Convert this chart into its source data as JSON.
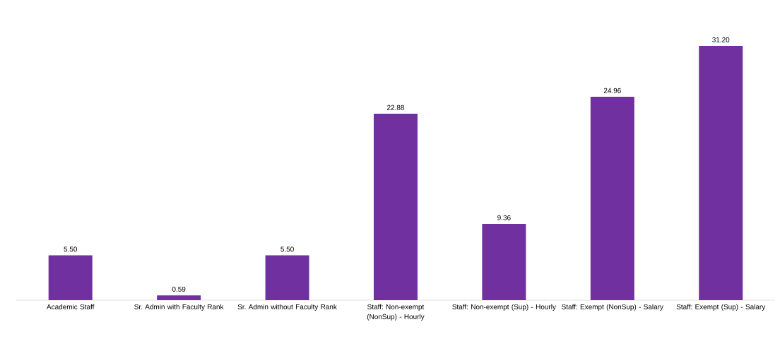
{
  "chart_data": {
    "type": "bar",
    "categories": [
      "Academic Staff",
      "Sr. Admin with Faculty Rank",
      "Sr. Admin without Faculty Rank",
      "Staff: Non-exempt (NonSup) - Hourly",
      "Staff: Non-exempt (Sup) - Hourly",
      "Staff: Exempt (NonSup) - Salary",
      "Staff: Exempt (Sup) - Salary"
    ],
    "values": [
      5.5,
      0.59,
      5.5,
      22.88,
      9.36,
      24.96,
      31.2
    ],
    "value_labels": [
      "5.50",
      "0.59",
      "5.50",
      "22.88",
      "9.36",
      "24.96",
      "31.20"
    ],
    "color": "#7030a0"
  }
}
